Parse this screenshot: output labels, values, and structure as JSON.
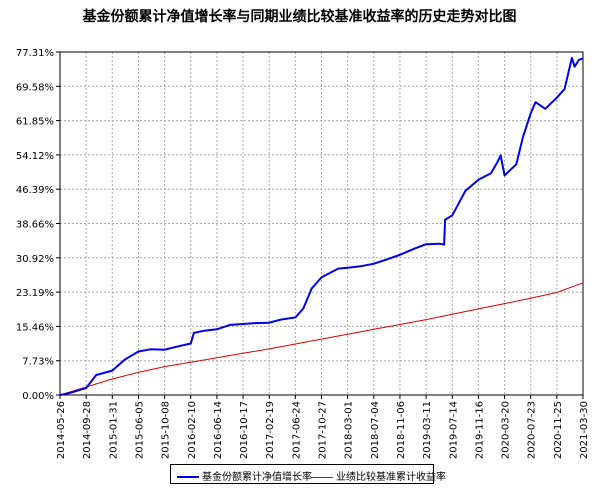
{
  "chart_data": {
    "type": "line",
    "title": "基金份额累计净值增长率与同期业绩比较基准收益率的历史走势对比图",
    "xlabel": "",
    "ylabel": "",
    "ylim": [
      0,
      77.31
    ],
    "y_ticks": [
      "0.00%",
      "7.73%",
      "15.46%",
      "23.19%",
      "30.92%",
      "38.66%",
      "46.39%",
      "54.12%",
      "61.85%",
      "69.58%",
      "77.31%"
    ],
    "x_range": [
      "2014-05-26",
      "2021-03-30"
    ],
    "x_ticks": [
      "2014-05-26",
      "2014-09-28",
      "2015-01-31",
      "2015-06-05",
      "2015-10-08",
      "2016-02-10",
      "2016-06-14",
      "2016-10-17",
      "2017-02-19",
      "2017-06-24",
      "2017-10-27",
      "2018-03-01",
      "2018-07-04",
      "2018-11-06",
      "2019-03-11",
      "2019-07-14",
      "2019-11-16",
      "2020-03-20",
      "2020-07-23",
      "2020-11-25",
      "2021-03-30"
    ],
    "grid": true,
    "legend_position": "bottom",
    "series": [
      {
        "name": "基金份额累计净值增长率",
        "color": "#0000ee",
        "x": [
          "2014-05-26",
          "2014-07-15",
          "2014-09-28",
          "2014-11-15",
          "2015-01-31",
          "2015-04-01",
          "2015-06-05",
          "2015-08-01",
          "2015-10-08",
          "2015-12-15",
          "2016-02-10",
          "2016-02-25",
          "2016-04-15",
          "2016-06-14",
          "2016-08-15",
          "2016-10-17",
          "2016-12-15",
          "2017-02-19",
          "2017-04-15",
          "2017-06-24",
          "2017-08-01",
          "2017-09-10",
          "2017-10-27",
          "2017-11-15",
          "2018-01-15",
          "2018-03-01",
          "2018-05-01",
          "2018-07-04",
          "2018-09-01",
          "2018-11-06",
          "2019-01-15",
          "2019-03-11",
          "2019-05-15",
          "2019-06-05",
          "2019-06-10",
          "2019-07-14",
          "2019-09-15",
          "2019-11-16",
          "2020-01-15",
          "2020-02-15",
          "2020-03-01",
          "2020-03-20",
          "2020-05-15",
          "2020-06-15",
          "2020-07-23",
          "2020-08-15",
          "2020-10-01",
          "2020-11-25",
          "2021-01-01",
          "2021-02-05",
          "2021-02-18",
          "2021-03-10",
          "2021-03-30"
        ],
        "y": [
          0.0,
          0.5,
          1.6,
          4.5,
          5.5,
          8.0,
          9.8,
          10.3,
          10.2,
          11.0,
          11.6,
          14.0,
          14.5,
          14.8,
          15.8,
          16.0,
          16.2,
          16.3,
          17.0,
          17.5,
          19.5,
          24.0,
          26.5,
          27.0,
          28.5,
          28.7,
          29.0,
          29.6,
          30.5,
          31.6,
          33.0,
          34.0,
          34.1,
          33.9,
          39.5,
          40.5,
          46.0,
          48.5,
          50.0,
          52.5,
          54.0,
          49.5,
          52.0,
          58.0,
          63.5,
          66.0,
          64.5,
          67.0,
          69.0,
          76.0,
          74.0,
          75.5,
          75.9
        ]
      },
      {
        "name": "业绩比较基准累计收益率",
        "color": "#dd0000",
        "x": [
          "2014-05-26",
          "2014-09-28",
          "2015-01-31",
          "2015-06-05",
          "2015-10-08",
          "2016-02-10",
          "2016-06-14",
          "2016-10-17",
          "2017-02-19",
          "2017-06-24",
          "2017-10-27",
          "2018-03-01",
          "2018-07-04",
          "2018-11-06",
          "2019-03-11",
          "2019-07-14",
          "2019-11-16",
          "2020-03-20",
          "2020-07-23",
          "2020-11-25",
          "2021-03-30"
        ],
        "y": [
          0.0,
          1.8,
          3.6,
          5.1,
          6.4,
          7.4,
          8.4,
          9.4,
          10.4,
          11.5,
          12.6,
          13.7,
          14.8,
          15.9,
          17.0,
          18.2,
          19.4,
          20.6,
          21.8,
          23.1,
          25.3
        ]
      }
    ]
  }
}
